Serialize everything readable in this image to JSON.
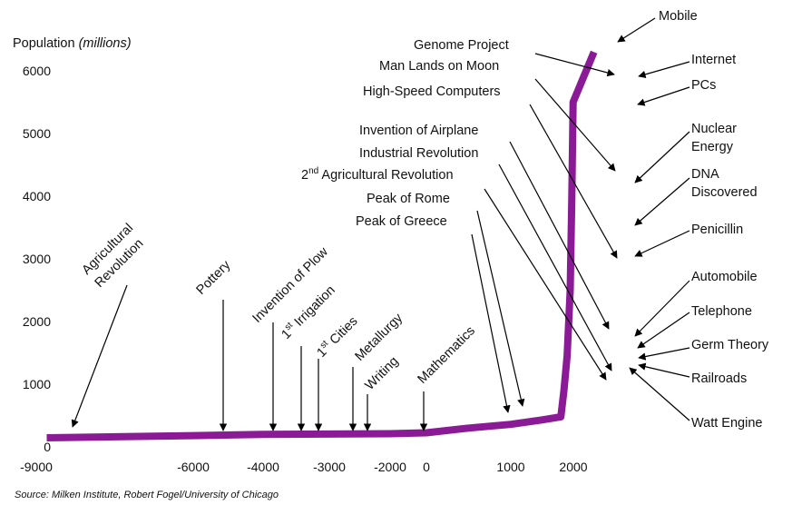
{
  "chart_data": {
    "type": "line",
    "ylabel": "Population",
    "ylabel_unit": "(millions)",
    "ylim": [
      0,
      6500
    ],
    "xlim": [
      -9000,
      2015
    ],
    "yticks": [
      0,
      1000,
      2000,
      3000,
      4000,
      5000,
      6000
    ],
    "xticks": [
      -9000,
      -6000,
      -4000,
      -3000,
      -2000,
      0,
      1000,
      2000
    ],
    "xtick_labels": [
      "-9000",
      "-6000",
      "-4000",
      "-3000",
      "-2000",
      "0",
      "1000",
      "2000"
    ],
    "grid": false,
    "line_color": "#8B1A96",
    "series": [
      {
        "name": "",
        "x": [
          -8800,
          -6000,
          -4000,
          -2000,
          0,
          500,
          1000,
          1500,
          1800,
          1850,
          1900,
          1950,
          1975,
          1995,
          2005
        ],
        "y": [
          145,
          180,
          200,
          210,
          225,
          300,
          360,
          430,
          480,
          900,
          1450,
          2500,
          4000,
          5500,
          6300
        ]
      }
    ],
    "source": "Source: Milken Institute, Robert Fogel/University of Chicago",
    "annotations": [
      {
        "id": "agricultural-revolution",
        "lines": [
          "Agricultural",
          "Revolution"
        ],
        "rotate": -45,
        "year": -8900,
        "value": 150
      },
      {
        "id": "pottery",
        "lines": [
          "Pottery"
        ],
        "rotate": -45,
        "year": -5000,
        "value": 180
      },
      {
        "id": "invention-of-plow",
        "lines": [
          "Invention of Plow"
        ],
        "rotate": -45,
        "year": -3900,
        "value": 190
      },
      {
        "id": "irrigation",
        "lines": [
          "1st Irrigation"
        ],
        "rotate": -45,
        "year": -3400,
        "value": 200
      },
      {
        "id": "cities",
        "lines": [
          "1st Cities"
        ],
        "rotate": -45,
        "year": -3100,
        "value": 200
      },
      {
        "id": "metallurgy",
        "lines": [
          "Metallurgy"
        ],
        "rotate": -45,
        "year": -2500,
        "value": 205
      },
      {
        "id": "writing",
        "lines": [
          "Writing"
        ],
        "rotate": -45,
        "year": -2250,
        "value": 210
      },
      {
        "id": "mathematics",
        "lines": [
          "Mathematics"
        ],
        "rotate": -45,
        "year": 0,
        "value": 225
      },
      {
        "id": "peak-of-greece",
        "lines": [
          "Peak of Greece"
        ],
        "year": -450,
        "value": 600
      },
      {
        "id": "peak-of-rome",
        "lines": [
          "Peak of Rome"
        ],
        "year": 150,
        "value": 650
      },
      {
        "id": "2nd-agricultural-revolution",
        "lines": [
          "2nd Agricultural Revolution"
        ],
        "year": 1700,
        "value": 1000
      },
      {
        "id": "industrial-revolution",
        "lines": [
          "Industrial Revolution"
        ],
        "year": 1750,
        "value": 1200
      },
      {
        "id": "invention-of-airplane",
        "lines": [
          "Invention of Airplane"
        ],
        "year": 1903,
        "value": 1900
      },
      {
        "id": "high-speed-computers",
        "lines": [
          "High-Speed Computers"
        ],
        "year": 1946,
        "value": 2500
      },
      {
        "id": "man-lands-on-moon",
        "lines": [
          "Man Lands on Moon"
        ],
        "year": 1969,
        "value": 3600
      },
      {
        "id": "genome-project",
        "lines": [
          "Genome Project"
        ],
        "year": 1990,
        "value": 5300
      },
      {
        "id": "mobile",
        "lines": [
          "Mobile"
        ],
        "year": 2000,
        "value": 6250
      },
      {
        "id": "internet",
        "lines": [
          "Internet"
        ],
        "year": 1995,
        "value": 5700
      },
      {
        "id": "pcs",
        "lines": [
          "PCs"
        ],
        "year": 1980,
        "value": 4400
      },
      {
        "id": "nuclear-energy",
        "lines": [
          "Nuclear",
          "Energy"
        ],
        "year": 1945,
        "value": 2400
      },
      {
        "id": "dna-discovered",
        "lines": [
          "DNA",
          "Discovered"
        ],
        "year": 1953,
        "value": 2700
      },
      {
        "id": "penicillin",
        "lines": [
          "Penicillin"
        ],
        "year": 1928,
        "value": 2000
      },
      {
        "id": "automobile",
        "lines": [
          "Automobile"
        ],
        "year": 1886,
        "value": 1500
      },
      {
        "id": "telephone",
        "lines": [
          "Telephone"
        ],
        "year": 1876,
        "value": 1400
      },
      {
        "id": "germ-theory",
        "lines": [
          "Germ Theory"
        ],
        "year": 1860,
        "value": 1300
      },
      {
        "id": "railroads",
        "lines": [
          "Railroads"
        ],
        "year": 1830,
        "value": 1100
      },
      {
        "id": "watt-engine",
        "lines": [
          "Watt Engine"
        ],
        "year": 1775,
        "value": 850
      }
    ]
  }
}
